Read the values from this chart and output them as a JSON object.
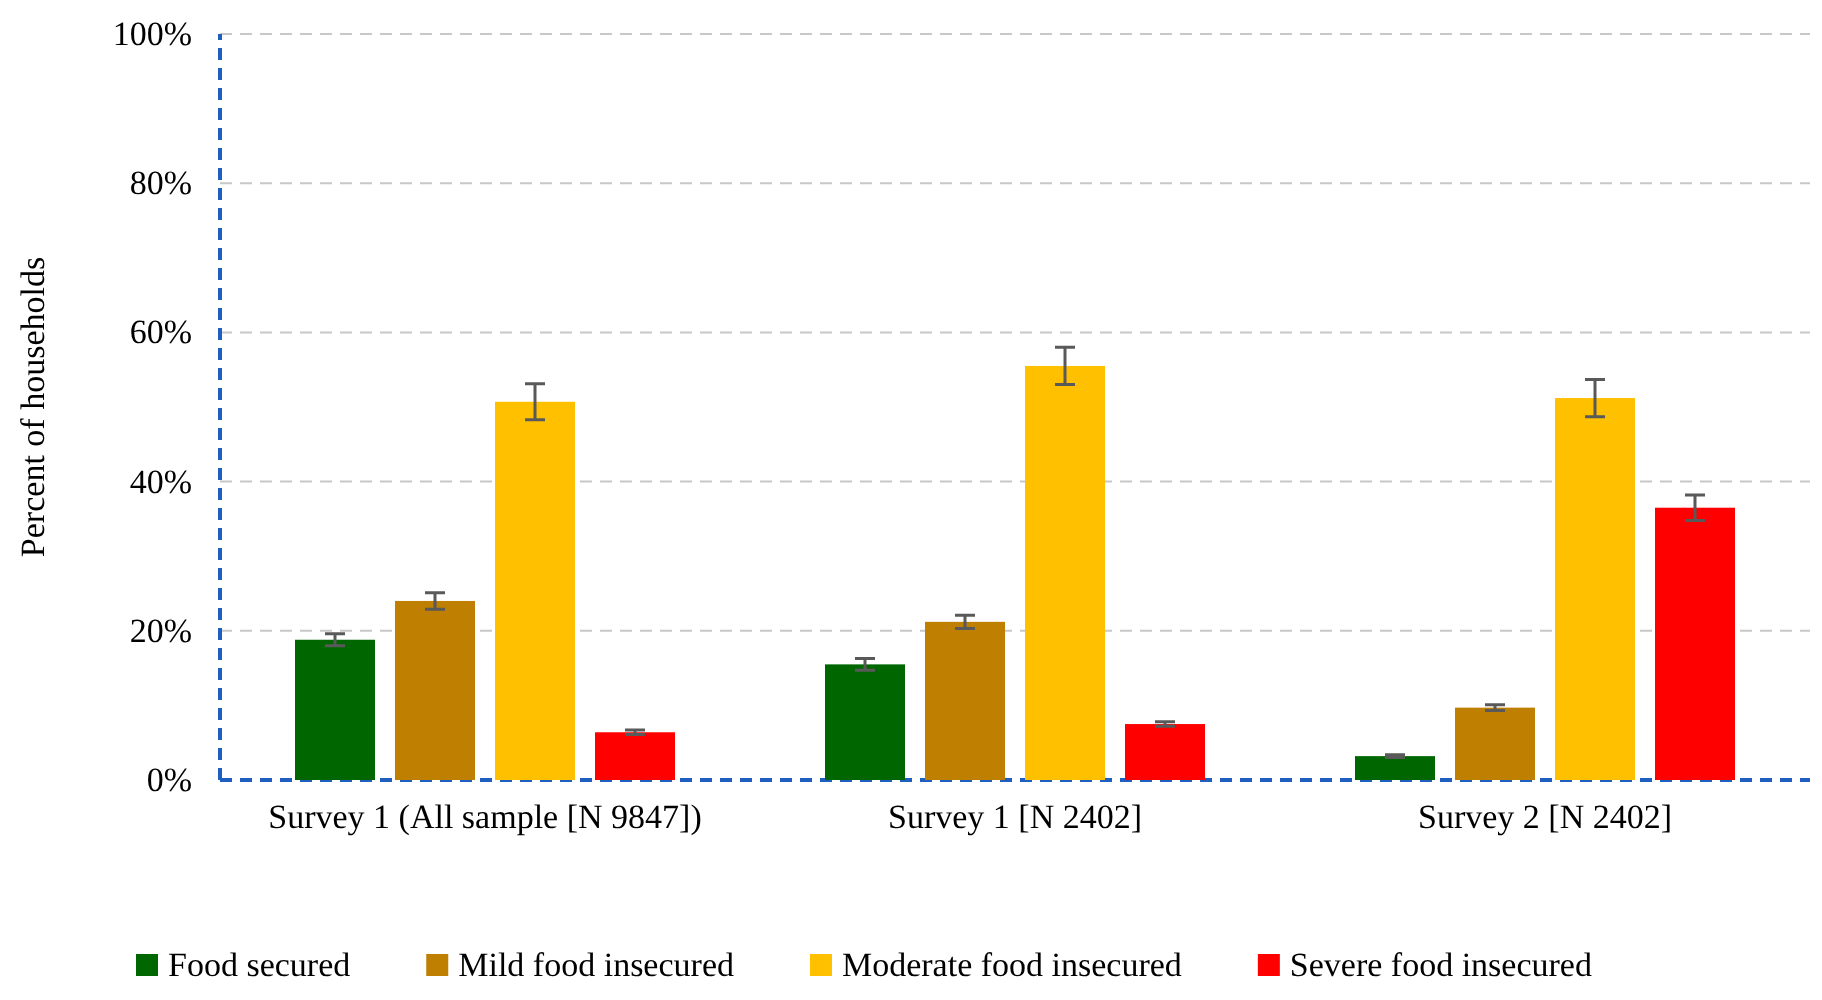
{
  "chart_data": {
    "type": "bar",
    "ylabel": "Percent of households",
    "categories": [
      "Survey 1 (All sample [N 9847])",
      "Survey 1 [N 2402]",
      "Survey 2 [N 2402]"
    ],
    "series": [
      {
        "name": "Food secured",
        "color": "#006600",
        "values": [
          18.8,
          15.5,
          3.2
        ],
        "errors": [
          0.8,
          0.8,
          0.2
        ]
      },
      {
        "name": "Mild food insecured",
        "color": "#bf7f00",
        "values": [
          24.0,
          21.2,
          9.7
        ],
        "errors": [
          1.1,
          0.9,
          0.4
        ]
      },
      {
        "name": "Moderate food insecured",
        "color": "#ffc000",
        "values": [
          50.7,
          55.5,
          51.2
        ],
        "errors": [
          2.4,
          2.5,
          2.5
        ]
      },
      {
        "name": "Severe food insecured",
        "color": "#ff0000",
        "values": [
          6.4,
          7.5,
          36.5
        ],
        "errors": [
          0.3,
          0.3,
          1.7
        ]
      }
    ],
    "ylim": [
      0,
      100
    ],
    "yticks": [
      {
        "value": 0,
        "label": "0%"
      },
      {
        "value": 20,
        "label": "20%"
      },
      {
        "value": 40,
        "label": "40%"
      },
      {
        "value": 60,
        "label": "60%"
      },
      {
        "value": 80,
        "label": "80%"
      },
      {
        "value": 100,
        "label": "100%"
      }
    ],
    "grid": "y",
    "legend": "bottom"
  }
}
